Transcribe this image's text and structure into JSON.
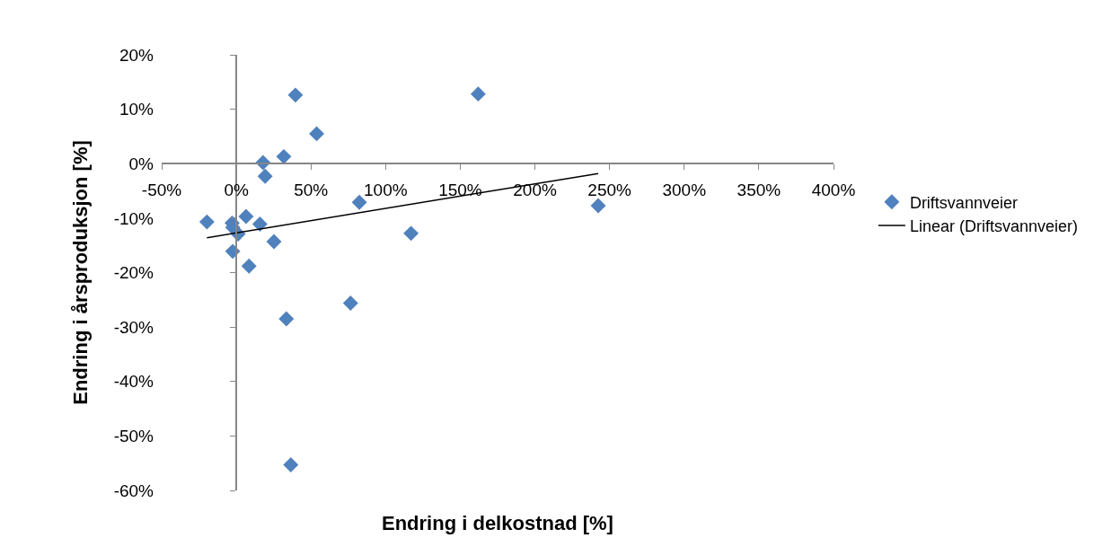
{
  "chart_data": {
    "type": "scatter",
    "xlabel": "Endring i delkostnad [%]",
    "ylabel": "Endring i årsproduksjon [%]",
    "series": [
      {
        "name": "Driftsvannveier",
        "color": "#4f81bd",
        "marker": "diamond",
        "x": [
          -19.7,
          -2.8,
          -2.4,
          1.2,
          -2.4,
          6.5,
          8.5,
          15.8,
          17.9,
          19.3,
          25.2,
          31.8,
          39.6,
          53.8,
          33.5,
          36.5,
          76.5,
          82.4,
          117,
          162,
          242.4
        ],
        "values": [
          -10.7,
          -10.9,
          -11.7,
          -12.9,
          -16.1,
          -9.7,
          -18.8,
          -11.1,
          0.2,
          -2.3,
          -14.3,
          1.3,
          12.6,
          5.5,
          -28.5,
          -55.3,
          -25.6,
          -7.1,
          -12.8,
          12.8,
          -7.7
        ]
      },
      {
        "name": "Linear (Driftsvannveier)",
        "type": "line",
        "color": "#000000",
        "line_style": "solid",
        "marker": "none",
        "x": [
          -19.7,
          242.4
        ],
        "values": [
          -13.6,
          -1.8
        ]
      }
    ],
    "xlim": [
      -50,
      400
    ],
    "ylim": [
      -60,
      20
    ],
    "xticks": [
      {
        "value": -50,
        "label": "-50%"
      },
      {
        "value": 0,
        "label": "0%"
      },
      {
        "value": 50,
        "label": "50%"
      },
      {
        "value": 100,
        "label": "100%"
      },
      {
        "value": 150,
        "label": "150%"
      },
      {
        "value": 200,
        "label": "200%"
      },
      {
        "value": 250,
        "label": "250%"
      },
      {
        "value": 300,
        "label": "300%"
      },
      {
        "value": 350,
        "label": "350%"
      },
      {
        "value": 400,
        "label": "400%"
      }
    ],
    "yticks": [
      {
        "value": -60,
        "label": "-60%"
      },
      {
        "value": -50,
        "label": "-50%"
      },
      {
        "value": -40,
        "label": "-40%"
      },
      {
        "value": -30,
        "label": "-30%"
      },
      {
        "value": -20,
        "label": "-20%"
      },
      {
        "value": -10,
        "label": "-10%"
      },
      {
        "value": 0,
        "label": "0%"
      },
      {
        "value": 10,
        "label": "10%"
      },
      {
        "value": 20,
        "label": "20%"
      }
    ],
    "legend": "right"
  }
}
